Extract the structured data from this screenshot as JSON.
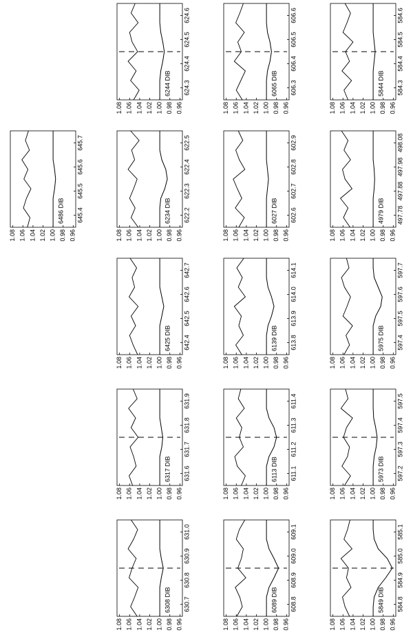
{
  "chart_data": [
    {
      "type": "line",
      "title": "5844 DIB",
      "xlim": [
        584.25,
        584.65
      ],
      "xticks": [
        584.3,
        584.4,
        584.5,
        584.6
      ],
      "ylim": [
        0.955,
        1.085
      ],
      "yticks": [
        1.08,
        1.06,
        1.04,
        1.02,
        {
          "value": 1,
          "label": "1.00"
        },
        0.98,
        0.96
      ],
      "vline": 584.45,
      "x": [
        584.25,
        584.29,
        584.33,
        584.37,
        584.41,
        584.45,
        584.49,
        584.53,
        584.57,
        584.61,
        584.65
      ],
      "series": [
        {
          "color": "#000000",
          "values": [
            1.05,
            1.058,
            1.043,
            1.062,
            1.047,
            1.055,
            1.04,
            1.06,
            1.052,
            1.045,
            1.056
          ]
        },
        {
          "color": "#000000",
          "values": [
            1,
            1,
            1,
            1,
            0.998,
            0.996,
            0.998,
            1,
            1,
            1,
            1
          ]
        }
      ]
    },
    {
      "type": "line",
      "title": "6065 DIB",
      "xlim": [
        606.25,
        606.65
      ],
      "xticks": [
        606.3,
        606.4,
        606.5,
        606.6
      ],
      "ylim": [
        0.955,
        1.085
      ],
      "yticks": [
        1.08,
        1.06,
        1.04,
        1.02,
        {
          "value": 1,
          "label": "1.00"
        },
        0.98,
        0.96
      ],
      "vline": 606.45,
      "x": [
        606.25,
        606.29,
        606.33,
        606.37,
        606.41,
        606.45,
        606.49,
        606.53,
        606.57,
        606.61,
        606.65
      ],
      "series": [
        {
          "color": "#000000",
          "values": [
            1.048,
            1.06,
            1.051,
            1.042,
            1.064,
            1.05,
            1.057,
            1.044,
            1.061,
            1.053,
            1.046
          ]
        },
        {
          "color": "#000000",
          "values": [
            1,
            1,
            1,
            0.998,
            0.993,
            0.99,
            0.993,
            0.998,
            1,
            1,
            1
          ]
        }
      ]
    },
    {
      "type": "line",
      "title": "6244 DIB",
      "xlim": [
        624.25,
        624.65
      ],
      "xticks": [
        624.3,
        624.4,
        624.5,
        624.6
      ],
      "ylim": [
        0.955,
        1.085
      ],
      "yticks": [
        1.08,
        1.06,
        1.04,
        1.02,
        {
          "value": 1,
          "label": "1.00"
        },
        0.98,
        0.96
      ],
      "vline": 624.45,
      "x": [
        624.25,
        624.29,
        624.33,
        624.37,
        624.41,
        624.45,
        624.49,
        624.53,
        624.57,
        624.61,
        624.65
      ],
      "series": [
        {
          "color": "#000000",
          "values": [
            1.052,
            1.041,
            1.058,
            1.047,
            1.063,
            1.044,
            1.055,
            1.06,
            1.043,
            1.057,
            1.049
          ]
        },
        {
          "color": "#000000",
          "values": [
            1,
            1,
            1,
            0.998,
            0.994,
            0.991,
            0.994,
            0.998,
            1,
            1,
            1
          ]
        }
      ]
    },
    {
      "type": "line",
      "title": "4979 DIB",
      "xlim": [
        497.73,
        498.13
      ],
      "xticks": [
        497.78,
        497.88,
        497.98,
        498.08
      ],
      "ylim": [
        0.955,
        1.085
      ],
      "yticks": [
        1.08,
        1.06,
        1.04,
        1.02,
        {
          "value": 1,
          "label": "1.00"
        },
        0.98,
        0.96
      ],
      "x": [
        497.73,
        497.77,
        497.81,
        497.85,
        497.89,
        497.93,
        497.97,
        498.01,
        498.05,
        498.09,
        498.13
      ],
      "series": [
        {
          "color": "#000000",
          "values": [
            1.046,
            1.059,
            1.05,
            1.065,
            1.042,
            1.056,
            1.061,
            1.045,
            1.058,
            1.05,
            1.063
          ]
        },
        {
          "color": "#000000",
          "values": [
            1,
            1,
            1,
            1,
            0.998,
            0.997,
            0.998,
            1,
            1,
            1,
            1
          ]
        }
      ]
    },
    {
      "type": "line",
      "title": "6027 DIB",
      "xlim": [
        602.55,
        602.95
      ],
      "xticks": [
        602.6,
        602.7,
        602.8,
        602.9
      ],
      "ylim": [
        0.955,
        1.085
      ],
      "yticks": [
        1.08,
        1.06,
        1.04,
        1.02,
        {
          "value": 1,
          "label": "1.00"
        },
        0.98,
        0.96
      ],
      "x": [
        602.55,
        602.59,
        602.63,
        602.67,
        602.71,
        602.75,
        602.79,
        602.83,
        602.87,
        602.91,
        602.95
      ],
      "series": [
        {
          "color": "#000000",
          "values": [
            1.055,
            1.044,
            1.062,
            1.049,
            1.058,
            1.066,
            1.043,
            1.054,
            1.061,
            1.047,
            1.056
          ]
        },
        {
          "color": "#000000",
          "values": [
            1,
            1,
            1,
            1,
            0.998,
            0.996,
            0.998,
            1,
            1,
            1,
            1
          ]
        }
      ]
    },
    {
      "type": "line",
      "title": "6234 DIB",
      "xlim": [
        622.15,
        622.55
      ],
      "xticks": [
        622.2,
        622.3,
        622.4,
        622.5
      ],
      "ylim": [
        0.955,
        1.085
      ],
      "yticks": [
        1.08,
        1.06,
        1.04,
        1.02,
        {
          "value": 1,
          "label": "1.00"
        },
        0.98,
        0.96
      ],
      "x": [
        622.15,
        622.19,
        622.23,
        622.27,
        622.31,
        622.35,
        622.39,
        622.43,
        622.47,
        622.51,
        622.55
      ],
      "series": [
        {
          "color": "#000000",
          "values": [
            1.043,
            1.057,
            1.049,
            1.06,
            1.052,
            1.045,
            1.063,
            1.05,
            1.056,
            1.041,
            1.058
          ]
        },
        {
          "color": "#000000",
          "values": [
            1,
            1,
            1,
            0.998,
            0.99,
            0.985,
            0.988,
            0.996,
            1,
            1,
            1
          ]
        }
      ]
    },
    {
      "type": "line",
      "title": "6486 DIB",
      "xlim": [
        645.35,
        645.75
      ],
      "xticks": [
        645.4,
        645.5,
        645.6,
        645.7
      ],
      "ylim": [
        0.955,
        1.085
      ],
      "yticks": [
        1.08,
        1.06,
        1.04,
        1.02,
        {
          "value": 1,
          "label": "1.00"
        },
        0.98,
        0.96
      ],
      "x": [
        645.35,
        645.39,
        645.43,
        645.47,
        645.51,
        645.55,
        645.59,
        645.63,
        645.67,
        645.71,
        645.75
      ],
      "series": [
        {
          "color": "#000000",
          "values": [
            1.051,
            1.046,
            1.059,
            1.053,
            1.044,
            1.058,
            1.05,
            1.062,
            1.047,
            1.055,
            1.049
          ]
        },
        {
          "color": "#000000",
          "values": [
            1,
            1,
            1,
            1,
            0.997,
            0.995,
            0.997,
            1,
            1,
            1,
            1
          ]
        }
      ]
    },
    {
      "type": "line",
      "title": "5975 DIB",
      "xlim": [
        597.35,
        597.75
      ],
      "xticks": [
        597.4,
        597.5,
        597.6,
        597.7
      ],
      "ylim": [
        0.955,
        1.085
      ],
      "yticks": [
        1.08,
        1.06,
        1.04,
        1.02,
        {
          "value": 1,
          "label": "1.00"
        },
        0.98,
        0.96
      ],
      "x": [
        597.35,
        597.39,
        597.43,
        597.47,
        597.51,
        597.55,
        597.59,
        597.63,
        597.67,
        597.71,
        597.75
      ],
      "series": [
        {
          "color": "#000000",
          "values": [
            1.058,
            1.047,
            1.054,
            1.041,
            1.06,
            1.052,
            1.045,
            1.057,
            1.063,
            1.048,
            1.053
          ]
        },
        {
          "color": "#000000",
          "values": [
            1,
            1,
            1,
            1,
            0.995,
            0.985,
            0.982,
            0.99,
            0.998,
            1,
            1
          ]
        }
      ]
    },
    {
      "type": "line",
      "title": "6139 DIB",
      "xlim": [
        613.75,
        614.15
      ],
      "xticks": [
        613.8,
        613.9,
        {
          "value": 614,
          "label": "614.0"
        },
        614.1
      ],
      "ylim": [
        0.955,
        1.085
      ],
      "yticks": [
        1.08,
        1.06,
        1.04,
        1.02,
        {
          "value": 1,
          "label": "1.00"
        },
        0.98,
        0.96
      ],
      "x": [
        613.75,
        613.79,
        613.83,
        613.87,
        613.91,
        613.95,
        613.99,
        614.03,
        614.07,
        614.11,
        614.15
      ],
      "series": [
        {
          "color": "#000000",
          "values": [
            1.049,
            1.061,
            1.046,
            1.055,
            1.05,
            1.064,
            1.042,
            1.056,
            1.048,
            1.059,
            1.045
          ]
        },
        {
          "color": "#000000",
          "values": [
            1,
            1,
            1,
            0.997,
            0.99,
            0.985,
            0.99,
            0.997,
            1,
            1,
            1
          ]
        }
      ]
    },
    {
      "type": "line",
      "title": "6425 DIB",
      "xlim": [
        642.35,
        642.75
      ],
      "xticks": [
        642.4,
        642.5,
        642.6,
        642.7
      ],
      "ylim": [
        0.955,
        1.085
      ],
      "yticks": [
        1.08,
        1.06,
        1.04,
        1.02,
        {
          "value": 1,
          "label": "1.00"
        },
        0.98,
        0.96
      ],
      "x": [
        642.35,
        642.39,
        642.43,
        642.47,
        642.51,
        642.55,
        642.59,
        642.63,
        642.67,
        642.71,
        642.75
      ],
      "series": [
        {
          "color": "#000000",
          "values": [
            1.044,
            1.053,
            1.06,
            1.048,
            1.057,
            1.043,
            1.061,
            1.05,
            1.055,
            1.046,
            1.059
          ]
        },
        {
          "color": "#000000",
          "values": [
            1,
            1,
            1,
            1,
            0.996,
            0.992,
            0.996,
            1,
            1,
            1,
            1
          ]
        }
      ]
    },
    {
      "type": "line",
      "title": "5973 DIB",
      "xlim": [
        597.15,
        597.55
      ],
      "xticks": [
        597.2,
        597.3,
        597.4,
        597.5
      ],
      "ylim": [
        0.955,
        1.085
      ],
      "yticks": [
        1.08,
        1.06,
        1.04,
        1.02,
        {
          "value": 1,
          "label": "1.00"
        },
        0.98,
        0.96
      ],
      "vline": 597.35,
      "x": [
        597.15,
        597.19,
        597.23,
        597.27,
        597.31,
        597.35,
        597.39,
        597.43,
        597.47,
        597.51,
        597.55
      ],
      "series": [
        {
          "color": "#000000",
          "values": [
            1.057,
            1.045,
            1.062,
            1.051,
            1.047,
            1.059,
            1.053,
            1.041,
            1.064,
            1.05,
            1.055
          ]
        },
        {
          "color": "#000000",
          "values": [
            1,
            1,
            1,
            0.998,
            0.994,
            0.992,
            0.995,
            0.999,
            1,
            1,
            1
          ]
        }
      ]
    },
    {
      "type": "line",
      "title": "6113 DIB",
      "xlim": [
        611.05,
        611.45
      ],
      "xticks": [
        611.1,
        611.2,
        611.3,
        611.4
      ],
      "ylim": [
        0.955,
        1.085
      ],
      "yticks": [
        1.08,
        1.06,
        1.04,
        1.02,
        {
          "value": 1,
          "label": "1.00"
        },
        0.98,
        0.96
      ],
      "vline": 611.25,
      "x": [
        611.05,
        611.09,
        611.13,
        611.17,
        611.21,
        611.25,
        611.29,
        611.33,
        611.37,
        611.41,
        611.45
      ],
      "series": [
        {
          "color": "#000000",
          "values": [
            1.05,
            1.042,
            1.058,
            1.063,
            1.046,
            1.054,
            1.049,
            1.06,
            1.044,
            1.056,
            1.051
          ]
        },
        {
          "color": "#000000",
          "values": [
            1,
            1,
            1,
            0.995,
            0.985,
            0.98,
            0.985,
            0.995,
            1,
            1,
            1
          ]
        }
      ]
    },
    {
      "type": "line",
      "title": "6317 DIB",
      "xlim": [
        631.55,
        631.95
      ],
      "xticks": [
        631.6,
        631.7,
        631.8,
        631.9
      ],
      "ylim": [
        0.955,
        1.085
      ],
      "yticks": [
        1.08,
        1.06,
        1.04,
        1.02,
        {
          "value": 1,
          "label": "1.00"
        },
        0.98,
        0.96
      ],
      "vline": 631.75,
      "x": [
        631.55,
        631.59,
        631.63,
        631.67,
        631.71,
        631.75,
        631.79,
        631.83,
        631.87,
        631.91,
        631.95
      ],
      "series": [
        {
          "color": "#000000",
          "values": [
            1.054,
            1.061,
            1.047,
            1.052,
            1.059,
            1.043,
            1.057,
            1.048,
            1.062,
            1.045,
            1.053
          ]
        },
        {
          "color": "#000000",
          "values": [
            1,
            1,
            1,
            1,
            0.996,
            0.994,
            0.997,
            1,
            1,
            1,
            1
          ]
        }
      ]
    },
    {
      "type": "line",
      "title": "5849 DIB",
      "xlim": [
        584.75,
        585.15
      ],
      "xticks": [
        584.8,
        584.9,
        {
          "value": 585,
          "label": "585.0"
        },
        585.1
      ],
      "ylim": [
        0.955,
        1.085
      ],
      "yticks": [
        1.08,
        1.06,
        1.04,
        1.02,
        {
          "value": 1,
          "label": "1.00"
        },
        0.98,
        0.96
      ],
      "vline": 584.95,
      "x": [
        584.75,
        584.79,
        584.83,
        584.87,
        584.91,
        584.95,
        584.99,
        585.03,
        585.07,
        585.11,
        585.15
      ],
      "series": [
        {
          "color": "#000000",
          "values": [
            1.047,
            1.056,
            1.061,
            1.044,
            1.053,
            1.049,
            1.064,
            1.042,
            1.058,
            1.051,
            1.046
          ]
        },
        {
          "color": "#000000",
          "values": [
            1,
            1,
            0.998,
            0.99,
            0.975,
            0.962,
            0.972,
            0.99,
            0.998,
            1,
            1
          ]
        }
      ]
    },
    {
      "type": "line",
      "title": "6089 DIB",
      "xlim": [
        608.75,
        609.15
      ],
      "xticks": [
        608.8,
        608.9,
        {
          "value": 609,
          "label": "609.0"
        },
        609.1
      ],
      "ylim": [
        0.955,
        1.085
      ],
      "yticks": [
        1.08,
        1.06,
        1.04,
        1.02,
        {
          "value": 1,
          "label": "1.00"
        },
        0.98,
        0.96
      ],
      "vline": 608.95,
      "x": [
        608.75,
        608.79,
        608.83,
        608.87,
        608.91,
        608.95,
        608.99,
        609.03,
        609.07,
        609.11,
        609.15
      ],
      "series": [
        {
          "color": "#000000",
          "values": [
            1.059,
            1.048,
            1.053,
            1.062,
            1.041,
            1.057,
            1.05,
            1.046,
            1.06,
            1.054,
            1.043
          ]
        },
        {
          "color": "#000000",
          "values": [
            1,
            1,
            1,
            0.995,
            0.985,
            0.976,
            0.985,
            0.995,
            1,
            1,
            1
          ]
        }
      ]
    },
    {
      "type": "line",
      "title": "6308 DIB",
      "xlim": [
        630.65,
        631.05
      ],
      "xticks": [
        630.7,
        630.8,
        630.9,
        {
          "value": 631,
          "label": "631.0"
        }
      ],
      "ylim": [
        0.955,
        1.085
      ],
      "yticks": [
        1.08,
        1.06,
        1.04,
        1.02,
        {
          "value": 1,
          "label": "1.00"
        },
        0.98,
        0.96
      ],
      "vline": 630.85,
      "x": [
        630.65,
        630.69,
        630.73,
        630.77,
        630.81,
        630.85,
        630.89,
        630.93,
        630.97,
        631.01,
        631.05
      ],
      "series": [
        {
          "color": "#000000",
          "values": [
            1.045,
            1.058,
            1.05,
            1.043,
            1.061,
            1.055,
            1.047,
            1.063,
            1.052,
            1.044,
            1.057
          ]
        },
        {
          "color": "#000000",
          "values": [
            1,
            1,
            1,
            1,
            0.997,
            0.993,
            0.997,
            1,
            1,
            1,
            1
          ]
        }
      ]
    }
  ]
}
